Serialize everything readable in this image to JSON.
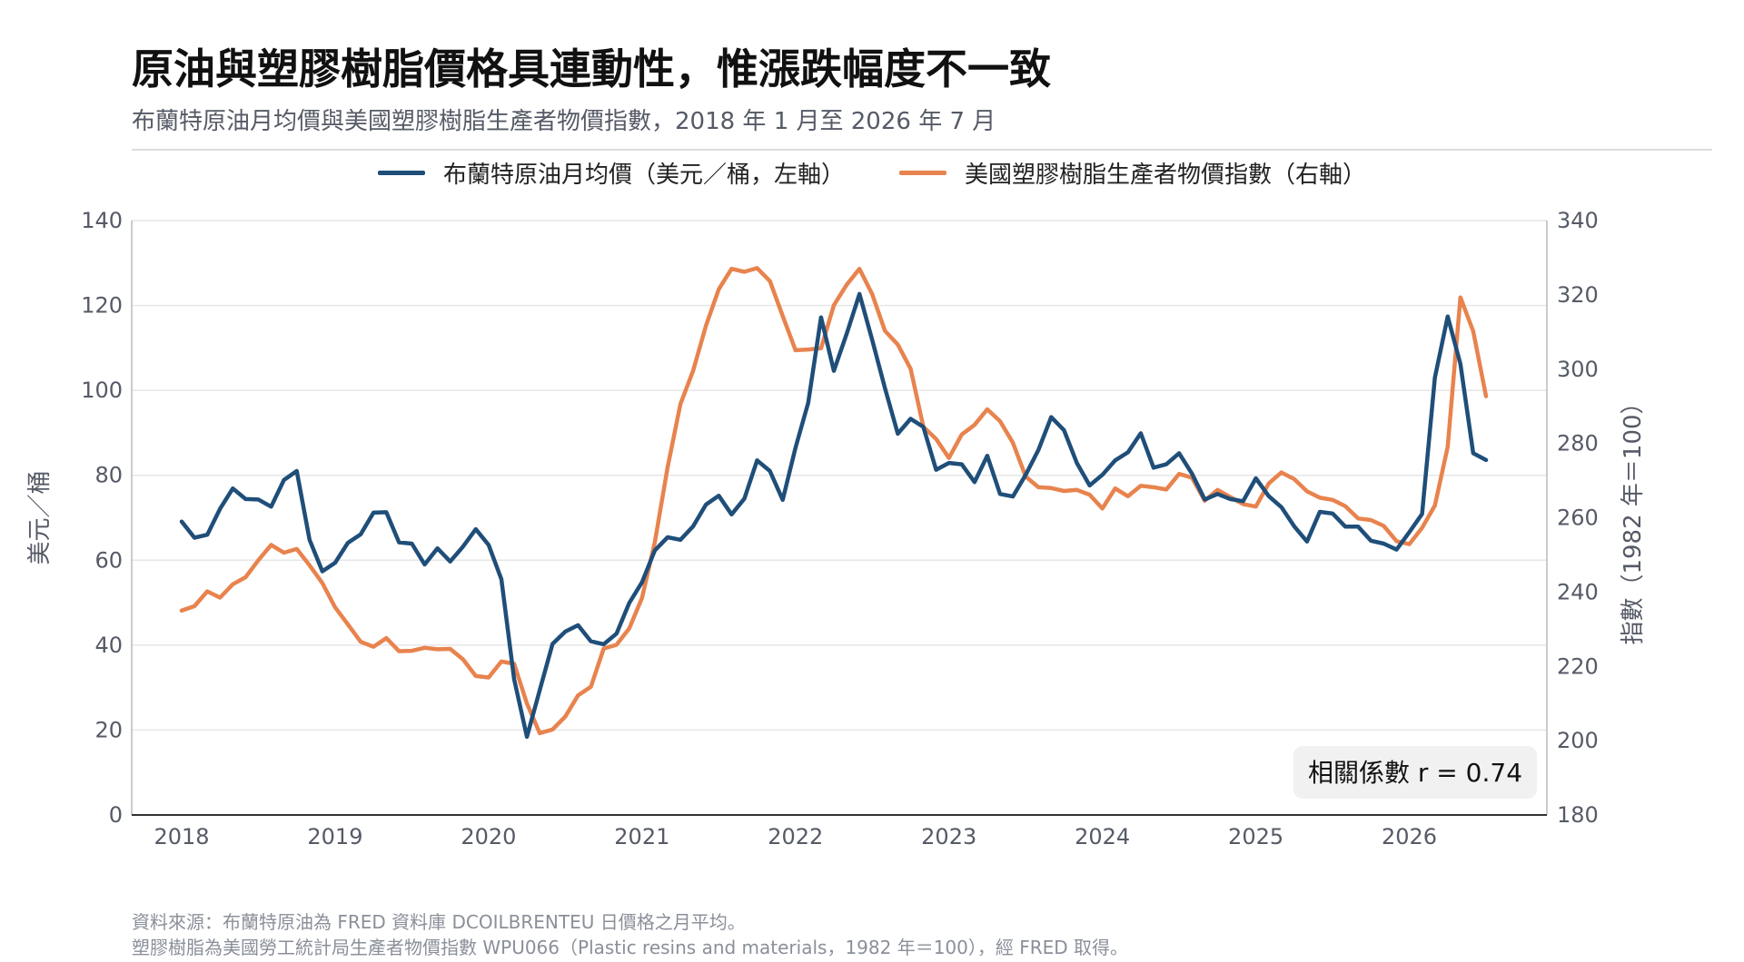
{
  "title": "原油與塑膠樹脂價格具連動性，惟漲跌幅度不一致",
  "subtitle": "布蘭特原油月均價與美國塑膠樹脂生產者物價指數，2018 年 1 月至 2026 年 7 月",
  "footnotes": [
    "資料來源：布蘭特原油為 FRED 資料庫 DCOILBRENTEU 日價格之月平均。",
    "塑膠樹脂為美國勞工統計局生產者物價指數 WPU066（Plastic resins and materials，1982 年＝100），經 FRED 取得。"
  ],
  "colors": {
    "brent": "#1f4e79",
    "resin": "#e8834e",
    "grid": "#e6e6e6",
    "axis": "#333333"
  },
  "chart_data": {
    "type": "line",
    "x_start": "2018-01",
    "x_end": "2026-07",
    "x_ticks": [
      "2018",
      "2019",
      "2020",
      "2021",
      "2022",
      "2023",
      "2024",
      "2025",
      "2026"
    ],
    "y_left": {
      "label": "美元／桶",
      "range": [
        0,
        140
      ],
      "ticks": [
        0,
        20,
        40,
        60,
        80,
        100,
        120,
        140
      ]
    },
    "y_right": {
      "label": "指數（1982 年＝100）",
      "range": [
        180,
        340
      ],
      "ticks": [
        180,
        200,
        220,
        240,
        260,
        280,
        300,
        320,
        340
      ]
    },
    "grid": "horizontal",
    "legend_position": "top-center",
    "annotation": "相關係數 r = 0.74",
    "series": [
      {
        "name": "布蘭特原油月均價（美元／桶，左軸）",
        "axis": "left",
        "values": [
          69.1,
          65.3,
          66.0,
          72.1,
          76.9,
          74.4,
          74.3,
          72.6,
          78.9,
          81.0,
          64.8,
          57.4,
          59.4,
          64.1,
          66.1,
          71.2,
          71.3,
          64.2,
          63.9,
          59.0,
          62.8,
          59.7,
          63.2,
          67.3,
          63.6,
          55.5,
          32.0,
          18.4,
          29.4,
          40.3,
          43.2,
          44.7,
          40.9,
          40.2,
          42.7,
          49.9,
          54.8,
          62.3,
          65.4,
          64.8,
          68.0,
          73.1,
          75.2,
          70.8,
          74.5,
          83.5,
          81.0,
          74.2,
          86.5,
          97.1,
          117.2,
          104.6,
          113.3,
          122.7,
          111.9,
          100.5,
          89.8,
          93.3,
          91.4,
          81.3,
          82.9,
          82.6,
          78.4,
          84.6,
          75.6,
          75.0,
          80.1,
          86.0,
          93.7,
          90.6,
          82.9,
          77.6,
          80.1,
          83.5,
          85.4,
          89.9,
          81.8,
          82.6,
          85.2,
          80.4,
          74.3,
          75.6,
          74.4,
          73.9,
          79.3,
          75.1,
          72.5,
          68.0,
          64.4,
          71.4,
          71.0,
          67.9,
          67.9,
          64.6,
          63.9,
          62.5,
          66.6,
          70.9,
          103.0,
          117.4,
          106.2,
          85.2,
          83.6
        ]
      },
      {
        "name": "美國塑膠樹脂生產者物價指數（右軸）",
        "axis": "right",
        "values": [
          235.0,
          236.2,
          240.2,
          238.5,
          242.1,
          244.0,
          248.6,
          252.7,
          250.6,
          251.6,
          247.2,
          242.4,
          235.9,
          231.3,
          226.6,
          225.3,
          227.6,
          224.1,
          224.2,
          225.0,
          224.6,
          224.7,
          221.9,
          217.4,
          217.0,
          221.3,
          220.7,
          210.0,
          202.0,
          203.0,
          206.5,
          212.2,
          214.5,
          224.8,
          225.8,
          230.2,
          238.4,
          253.4,
          273.6,
          290.6,
          299.6,
          311.7,
          321.5,
          327.0,
          326.2,
          327.2,
          323.7,
          314.3,
          305.1,
          305.3,
          305.6,
          317.2,
          322.7,
          327.0,
          320.2,
          310.3,
          306.6,
          300.1,
          284.5,
          281.2,
          276.1,
          282.4,
          285.0,
          289.2,
          286.0,
          280.2,
          271.1,
          268.2,
          268.0,
          267.2,
          267.5,
          266.2,
          262.5,
          267.9,
          265.8,
          268.6,
          268.2,
          267.6,
          271.8,
          270.8,
          264.6,
          267.5,
          265.6,
          263.7,
          263.0,
          269.2,
          272.2,
          270.4,
          267.1,
          265.4,
          264.8,
          263.1,
          259.8,
          259.4,
          257.8,
          253.7,
          252.9,
          257.3,
          263.3,
          279.1,
          319.3,
          310.2,
          292.7
        ]
      }
    ]
  }
}
